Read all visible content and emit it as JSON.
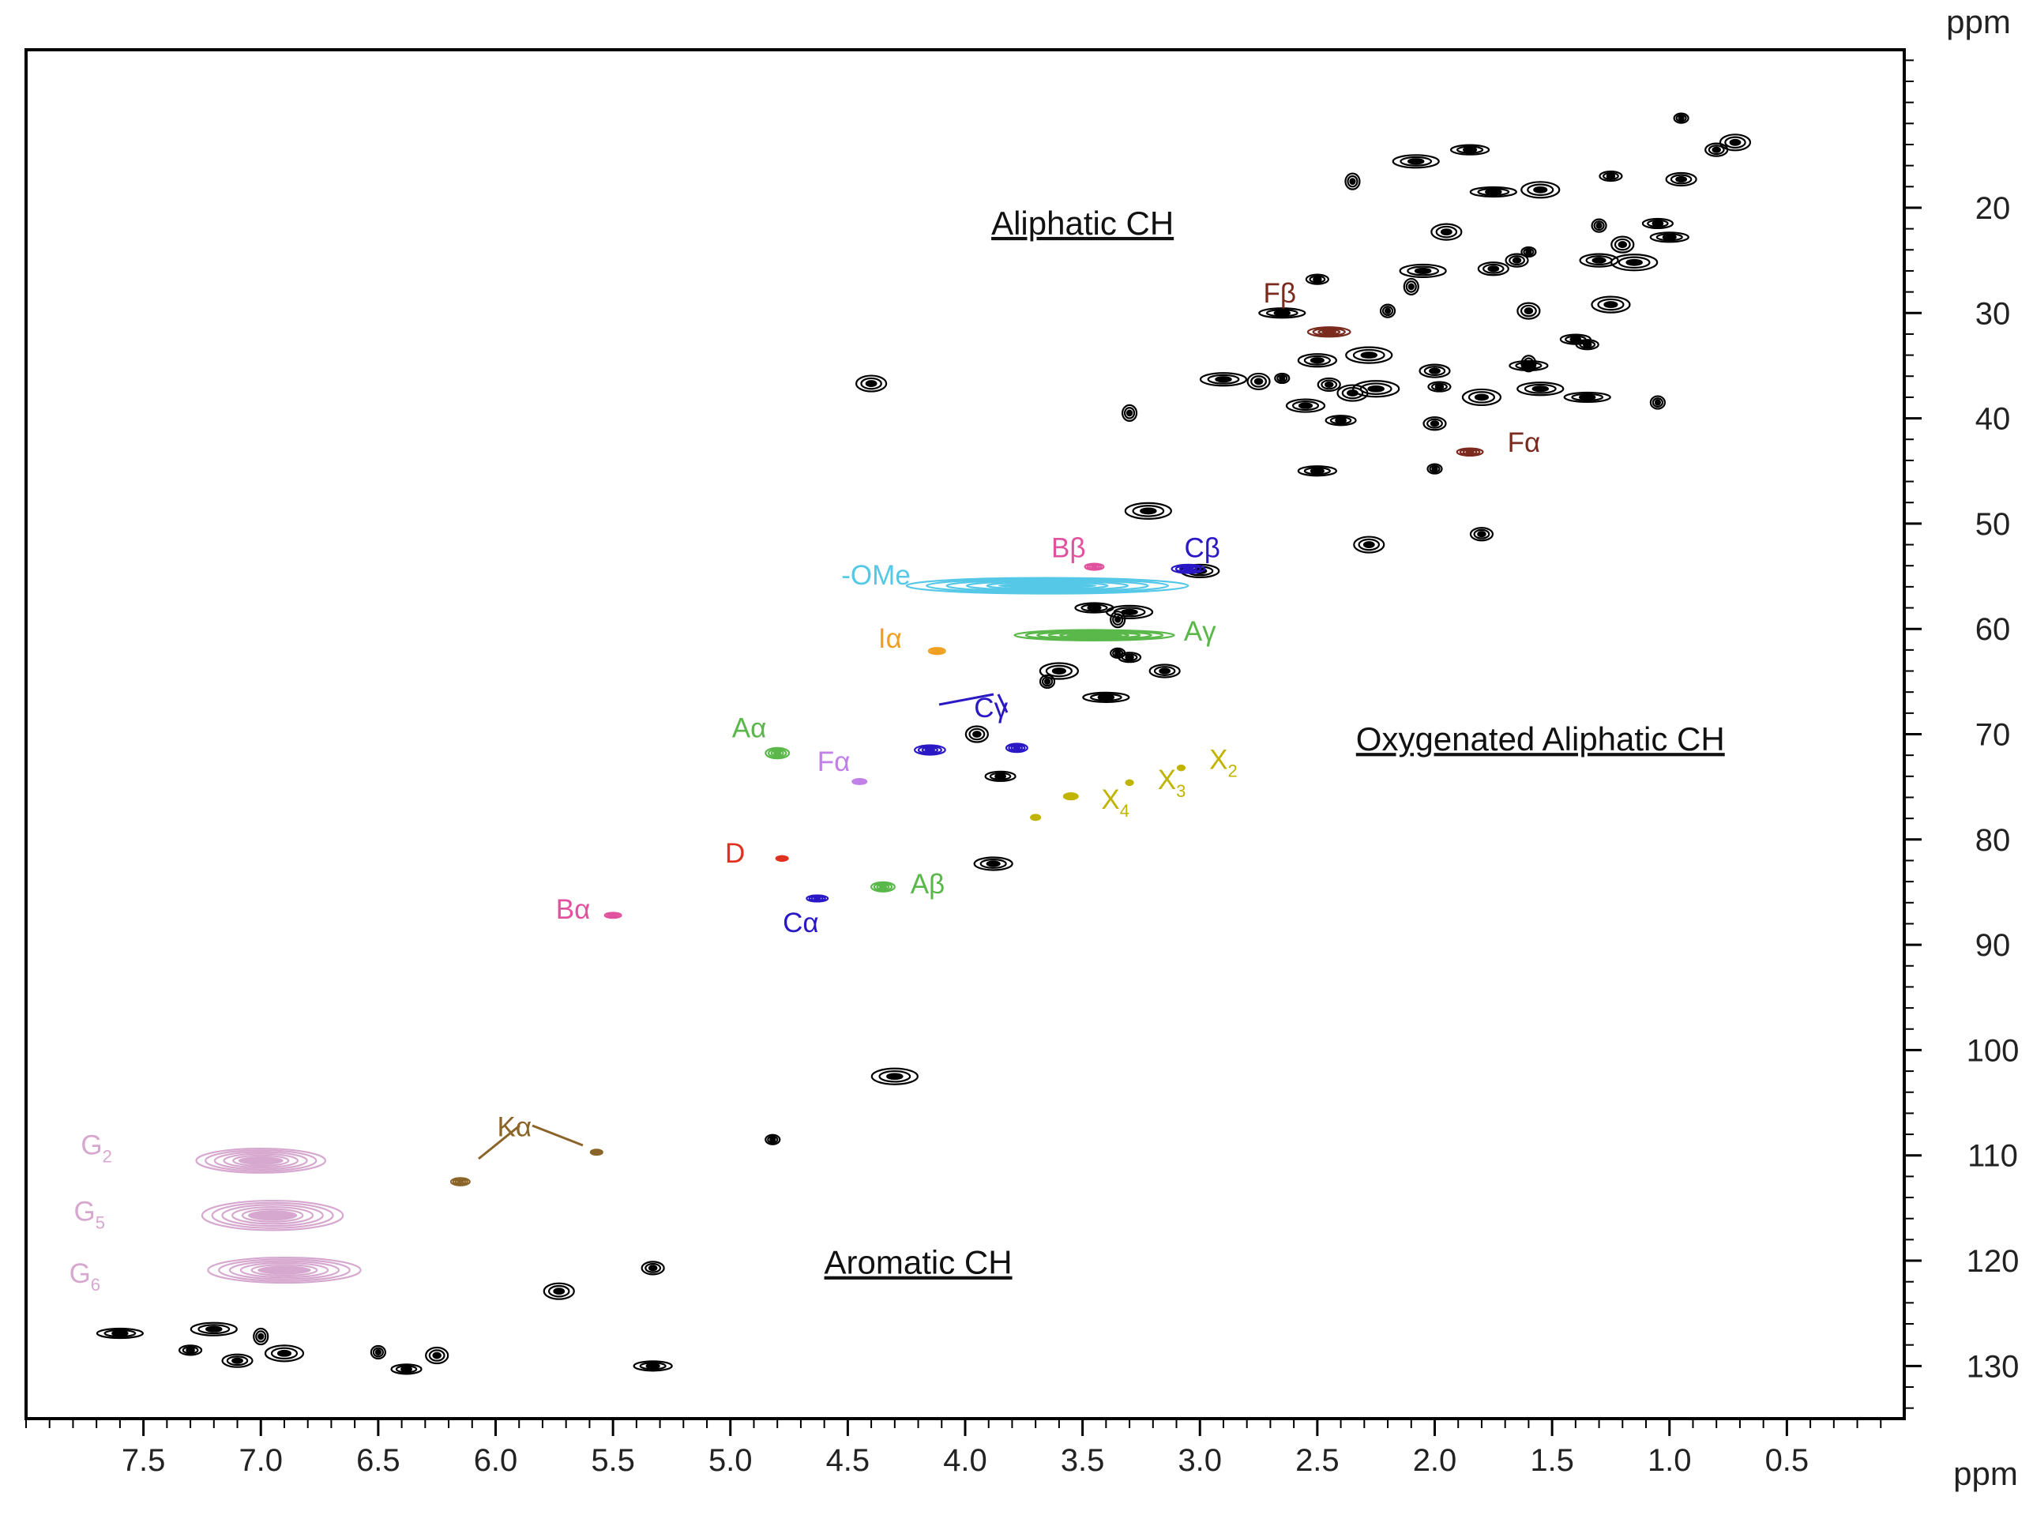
{
  "chart_data": {
    "type": "scatter",
    "title": "",
    "x_unit_label": "ppm",
    "y_unit_label": "ppm",
    "xlim": [
      8.0,
      0.0
    ],
    "ylim": [
      5.0,
      135.0
    ],
    "x_ticks": [
      7.5,
      7.0,
      6.5,
      6.0,
      5.5,
      5.0,
      4.5,
      4.0,
      3.5,
      3.0,
      2.5,
      2.0,
      1.5,
      1.0,
      0.5
    ],
    "x_tick_labels": [
      "7.5",
      "7.0",
      "6.5",
      "6.0",
      "5.5",
      "5.0",
      "4.5",
      "4.0",
      "3.5",
      "3.0",
      "2.5",
      "2.0",
      "1.5",
      "1.0",
      "0.5"
    ],
    "y_ticks": [
      20,
      30,
      40,
      50,
      60,
      70,
      80,
      90,
      100,
      110,
      120,
      130
    ],
    "y_tick_labels": [
      "20",
      "30",
      "40",
      "50",
      "60",
      "70",
      "80",
      "90",
      "100",
      "110",
      "120",
      "130"
    ],
    "regions": [
      {
        "label": "Aliphatic CH",
        "x": 3.5,
        "y": 21.5
      },
      {
        "label": "Oxygenated Aliphatic CH",
        "x": 1.55,
        "y": 70.5
      },
      {
        "label": "Aromatic CH",
        "x": 4.2,
        "y": 120.2
      }
    ],
    "assigned_series": [
      {
        "name": "-OMe",
        "color": "#55c8e8",
        "label_x": 4.38,
        "label_y": 54.9,
        "peaks": [
          {
            "x": 3.65,
            "y": 55.9,
            "w": 1.2,
            "h": 1.5
          }
        ]
      },
      {
        "name": "Aγ",
        "color": "#5ab84a",
        "label_x": 3.0,
        "label_y": 60.2,
        "peaks": [
          {
            "x": 3.45,
            "y": 60.6,
            "w": 0.68,
            "h": 1.0
          }
        ]
      },
      {
        "name": "Aα",
        "color": "#5ab84a",
        "label_x": 4.92,
        "label_y": 69.4,
        "peaks": [
          {
            "x": 4.8,
            "y": 71.8,
            "w": 0.1,
            "h": 1.0
          }
        ]
      },
      {
        "name": "Aβ",
        "color": "#5ab84a",
        "label_x": 4.16,
        "label_y": 84.2,
        "peaks": [
          {
            "x": 4.35,
            "y": 84.5,
            "w": 0.1,
            "h": 0.9
          }
        ]
      },
      {
        "name": "Bβ",
        "color": "#e0529e",
        "label_x": 3.56,
        "label_y": 52.3,
        "peaks": [
          {
            "x": 3.45,
            "y": 54.1,
            "w": 0.08,
            "h": 0.6
          }
        ]
      },
      {
        "name": "Bα",
        "color": "#e0529e",
        "label_x": 5.67,
        "label_y": 86.6,
        "peaks": [
          {
            "x": 5.5,
            "y": 87.2,
            "w": 0.07,
            "h": 0.5
          }
        ]
      },
      {
        "name": "Cβ",
        "color": "#2a18c4",
        "label_x": 2.99,
        "label_y": 52.3,
        "peaks": [
          {
            "x": 3.05,
            "y": 54.3,
            "w": 0.14,
            "h": 0.8
          }
        ]
      },
      {
        "name": "Cγ",
        "color": "#2a18c4",
        "label_x": 3.89,
        "label_y": 67.5,
        "peaks": [
          {
            "x": 4.15,
            "y": 71.5,
            "w": 0.13,
            "h": 0.9
          },
          {
            "x": 3.78,
            "y": 71.3,
            "w": 0.09,
            "h": 0.8
          }
        ]
      },
      {
        "name": "Cα",
        "color": "#2a18c4",
        "label_x": 4.7,
        "label_y": 87.9,
        "peaks": [
          {
            "x": 4.63,
            "y": 85.6,
            "w": 0.09,
            "h": 0.6
          }
        ]
      },
      {
        "name": "Fβ",
        "color": "#7a2a1e",
        "label_x": 2.66,
        "label_y": 28.1,
        "peaks": [
          {
            "x": 2.45,
            "y": 31.8,
            "w": 0.18,
            "h": 0.9
          }
        ]
      },
      {
        "name": "Fα",
        "color": "#7a2a1e",
        "label_x": 1.62,
        "label_y": 42.3,
        "peaks": [
          {
            "x": 1.85,
            "y": 43.2,
            "w": 0.11,
            "h": 0.7
          }
        ]
      },
      {
        "name": "Fα",
        "color": "#c080e8",
        "label_x": 4.56,
        "label_y": 72.6,
        "peaks": [
          {
            "x": 4.45,
            "y": 74.5,
            "w": 0.06,
            "h": 0.5
          }
        ]
      },
      {
        "name": "Iα",
        "color": "#f0a020",
        "label_x": 4.32,
        "label_y": 60.9,
        "peaks": [
          {
            "x": 4.12,
            "y": 62.1,
            "w": 0.07,
            "h": 0.6
          }
        ]
      },
      {
        "name": "D",
        "color": "#e03020",
        "label_x": 4.98,
        "label_y": 81.3,
        "peaks": [
          {
            "x": 4.78,
            "y": 81.8,
            "w": 0.05,
            "h": 0.4
          }
        ]
      },
      {
        "name": "X₂",
        "color": "#c0b400",
        "label_x": 2.9,
        "label_y": 72.4,
        "peaks": [
          {
            "x": 3.08,
            "y": 73.2,
            "w": 0.03,
            "h": 0.4
          }
        ]
      },
      {
        "name": "X₃",
        "color": "#c0b400",
        "label_x": 3.12,
        "label_y": 74.3,
        "peaks": [
          {
            "x": 3.3,
            "y": 74.6,
            "w": 0.03,
            "h": 0.4
          }
        ]
      },
      {
        "name": "X₄",
        "color": "#c0b400",
        "label_x": 3.36,
        "label_y": 76.2,
        "peaks": [
          {
            "x": 3.55,
            "y": 75.9,
            "w": 0.06,
            "h": 0.6
          },
          {
            "x": 3.7,
            "y": 77.9,
            "w": 0.04,
            "h": 0.5
          }
        ]
      },
      {
        "name": "Kα",
        "color": "#8a6428",
        "label_x": 5.92,
        "label_y": 107.3,
        "peaks": [
          {
            "x": 6.15,
            "y": 112.5,
            "w": 0.08,
            "h": 0.7
          },
          {
            "x": 5.57,
            "y": 109.7,
            "w": 0.05,
            "h": 0.5
          }
        ]
      },
      {
        "name": "G₂",
        "color": "#d7a8cf",
        "label_x": 7.7,
        "label_y": 109.0,
        "peaks": [
          {
            "x": 7.0,
            "y": 110.5,
            "w": 0.55,
            "h": 2.3
          }
        ]
      },
      {
        "name": "G₅",
        "color": "#d7a8cf",
        "label_x": 7.73,
        "label_y": 115.3,
        "peaks": [
          {
            "x": 6.95,
            "y": 115.7,
            "w": 0.6,
            "h": 2.8
          }
        ]
      },
      {
        "name": "G₆",
        "color": "#d7a8cf",
        "label_x": 7.75,
        "label_y": 121.2,
        "peaks": [
          {
            "x": 6.9,
            "y": 120.9,
            "w": 0.65,
            "h": 2.4
          }
        ]
      }
    ],
    "unassigned_peaks": [
      {
        "x": 0.95,
        "y": 11.5
      },
      {
        "x": 0.8,
        "y": 14.5
      },
      {
        "x": 0.72,
        "y": 13.8
      },
      {
        "x": 1.85,
        "y": 14.5
      },
      {
        "x": 2.08,
        "y": 15.6
      },
      {
        "x": 2.35,
        "y": 17.5
      },
      {
        "x": 1.25,
        "y": 17.0
      },
      {
        "x": 0.95,
        "y": 17.3
      },
      {
        "x": 1.55,
        "y": 18.3
      },
      {
        "x": 1.75,
        "y": 18.5
      },
      {
        "x": 1.3,
        "y": 21.7
      },
      {
        "x": 1.2,
        "y": 23.5
      },
      {
        "x": 1.05,
        "y": 21.5
      },
      {
        "x": 1.3,
        "y": 25.0
      },
      {
        "x": 1.15,
        "y": 25.2
      },
      {
        "x": 1.6,
        "y": 24.2
      },
      {
        "x": 1.65,
        "y": 25.0
      },
      {
        "x": 1.95,
        "y": 22.3
      },
      {
        "x": 1.0,
        "y": 22.8
      },
      {
        "x": 2.05,
        "y": 26.0
      },
      {
        "x": 2.1,
        "y": 27.5
      },
      {
        "x": 2.5,
        "y": 26.8
      },
      {
        "x": 1.75,
        "y": 25.8
      },
      {
        "x": 1.25,
        "y": 29.2
      },
      {
        "x": 2.65,
        "y": 30.0
      },
      {
        "x": 2.2,
        "y": 29.8
      },
      {
        "x": 1.6,
        "y": 29.8
      },
      {
        "x": 1.4,
        "y": 32.5
      },
      {
        "x": 2.5,
        "y": 34.5
      },
      {
        "x": 2.28,
        "y": 34.0
      },
      {
        "x": 2.65,
        "y": 36.2
      },
      {
        "x": 2.45,
        "y": 36.8
      },
      {
        "x": 2.35,
        "y": 37.6
      },
      {
        "x": 1.6,
        "y": 35.0
      },
      {
        "x": 1.55,
        "y": 37.2
      },
      {
        "x": 1.6,
        "y": 34.8
      },
      {
        "x": 1.35,
        "y": 33.0
      },
      {
        "x": 2.0,
        "y": 35.5
      },
      {
        "x": 1.8,
        "y": 38.0
      },
      {
        "x": 1.35,
        "y": 38.0
      },
      {
        "x": 1.05,
        "y": 38.5
      },
      {
        "x": 2.75,
        "y": 36.5
      },
      {
        "x": 2.4,
        "y": 40.2
      },
      {
        "x": 2.55,
        "y": 38.8
      },
      {
        "x": 2.25,
        "y": 37.2
      },
      {
        "x": 2.0,
        "y": 44.8
      },
      {
        "x": 2.0,
        "y": 40.5
      },
      {
        "x": 4.4,
        "y": 36.7
      },
      {
        "x": 3.45,
        "y": 58.0
      },
      {
        "x": 3.3,
        "y": 58.4
      },
      {
        "x": 3.35,
        "y": 59.1
      },
      {
        "x": 3.3,
        "y": 62.7
      },
      {
        "x": 3.15,
        "y": 64.0
      },
      {
        "x": 3.6,
        "y": 64.0
      },
      {
        "x": 3.4,
        "y": 66.5
      },
      {
        "x": 3.65,
        "y": 65.0
      },
      {
        "x": 3.95,
        "y": 70.0
      },
      {
        "x": 3.85,
        "y": 74.0
      },
      {
        "x": 3.88,
        "y": 82.3
      },
      {
        "x": 4.3,
        "y": 102.5
      },
      {
        "x": 4.82,
        "y": 108.5
      },
      {
        "x": 5.33,
        "y": 120.7
      },
      {
        "x": 5.73,
        "y": 122.9
      },
      {
        "x": 5.33,
        "y": 130.0
      },
      {
        "x": 7.2,
        "y": 126.5
      },
      {
        "x": 7.0,
        "y": 127.2
      },
      {
        "x": 7.3,
        "y": 128.5
      },
      {
        "x": 7.1,
        "y": 129.5
      },
      {
        "x": 6.9,
        "y": 128.8
      },
      {
        "x": 7.6,
        "y": 126.9
      },
      {
        "x": 6.5,
        "y": 128.7
      },
      {
        "x": 6.25,
        "y": 129.0
      },
      {
        "x": 6.38,
        "y": 130.3
      },
      {
        "x": 3.0,
        "y": 54.5
      },
      {
        "x": 3.22,
        "y": 48.8
      },
      {
        "x": 3.35,
        "y": 62.3
      },
      {
        "x": 1.8,
        "y": 51.0
      },
      {
        "x": 2.28,
        "y": 52.0
      },
      {
        "x": 2.5,
        "y": 45.0
      },
      {
        "x": 2.9,
        "y": 36.3
      },
      {
        "x": 3.3,
        "y": 39.5
      },
      {
        "x": 1.98,
        "y": 37.0
      }
    ]
  }
}
